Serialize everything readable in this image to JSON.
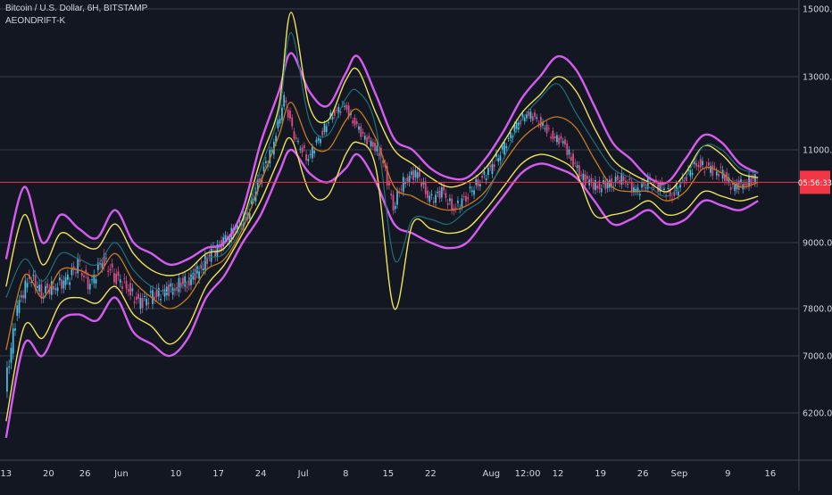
{
  "header": {
    "symbol_title": "Bitcoin / U.S. Dollar, 6H, BITSTAMP",
    "indicator_name": "AEONDRIFT-K"
  },
  "colors": {
    "background": "#131722",
    "grid": "#363a45",
    "text": "#d1d4dc",
    "price_line": "#f23645",
    "magenta_band": "#d65cf0",
    "yellow_band": "#f0e15a",
    "orange_band": "#c77a1e",
    "teal_band": "#1f6f78",
    "candle_up": "#4fc3e8",
    "candle_down": "#e84f8c"
  },
  "chart_data": {
    "type": "line",
    "title": "",
    "xlabel": "",
    "ylabel": "",
    "ylim": [
      5800,
      15000
    ],
    "yticks": [
      15000,
      13000,
      11000,
      9000,
      7000
    ],
    "ytick_labels": [
      "15000.00",
      "13000.00",
      "11000.00",
      "9000.00",
      "7800.00",
      "7000.00",
      "6200.00"
    ],
    "ytick_values": [
      15000,
      13000,
      11000,
      9000,
      7800,
      7000,
      6200
    ],
    "grid": true,
    "current_price": 10300,
    "current_price_label": "05:56:33",
    "xtick_labels": [
      "13",
      "20",
      "26",
      "Jun",
      "10",
      "17",
      "24",
      "Jul",
      "8",
      "15",
      "22",
      "Aug",
      "12:00",
      "12",
      "19",
      "26",
      "Sep",
      "9",
      "16"
    ],
    "xtick_days": [
      0,
      7,
      13,
      19,
      28,
      35,
      42,
      49,
      56,
      63,
      70,
      80,
      86,
      91,
      98,
      105,
      111,
      119,
      126
    ],
    "x_days_range": [
      -1,
      130
    ],
    "series": [
      {
        "key": "magenta_upper",
        "x": [
          0,
          3,
          6,
          9,
          12,
          15,
          18,
          21,
          24,
          27,
          30,
          33,
          36,
          39,
          42,
          45,
          47,
          50,
          53,
          56,
          58,
          61,
          64,
          67,
          70,
          73,
          76,
          79,
          82,
          85,
          88,
          91,
          94,
          97,
          100,
          103,
          106,
          109,
          112,
          115,
          118,
          121,
          124
        ],
        "y": [
          8700,
          10200,
          9000,
          9600,
          9300,
          9100,
          9700,
          9000,
          8800,
          8600,
          8700,
          8900,
          9000,
          9700,
          11200,
          12600,
          13700,
          12600,
          12200,
          13100,
          13600,
          12500,
          11300,
          11000,
          10600,
          10400,
          10400,
          10800,
          11500,
          12400,
          13000,
          13600,
          13200,
          12200,
          11200,
          10800,
          10400,
          10300,
          10800,
          11400,
          11200,
          10700,
          10500
        ]
      },
      {
        "key": "magenta_lower",
        "x": [
          0,
          3,
          6,
          9,
          12,
          15,
          18,
          21,
          24,
          27,
          30,
          33,
          36,
          39,
          42,
          45,
          47,
          50,
          53,
          56,
          58,
          61,
          64,
          67,
          70,
          73,
          76,
          79,
          82,
          85,
          88,
          91,
          94,
          97,
          100,
          103,
          106,
          109,
          112,
          115,
          118,
          121,
          124
        ],
        "y": [
          5900,
          7200,
          7000,
          7600,
          7700,
          7600,
          8000,
          7400,
          7200,
          7000,
          7300,
          8000,
          8400,
          9000,
          9600,
          10500,
          11000,
          10500,
          10300,
          10600,
          10900,
          10300,
          9400,
          9200,
          9000,
          8900,
          9000,
          9500,
          10000,
          10500,
          10700,
          10600,
          10400,
          9900,
          9400,
          9500,
          9700,
          9400,
          9500,
          9900,
          9800,
          9700,
          9900
        ]
      },
      {
        "key": "yellow_upper",
        "x": [
          0,
          3,
          6,
          9,
          12,
          15,
          18,
          21,
          24,
          27,
          30,
          33,
          36,
          39,
          42,
          45,
          47,
          50,
          53,
          56,
          58,
          61,
          64,
          67,
          70,
          73,
          76,
          79,
          82,
          85,
          88,
          91,
          94,
          97,
          100,
          103,
          106,
          109,
          112,
          115,
          118,
          121,
          124
        ],
        "y": [
          8200,
          9600,
          8600,
          9200,
          9000,
          8900,
          9400,
          8800,
          8500,
          8400,
          8500,
          8800,
          8900,
          9500,
          10800,
          12200,
          14900,
          12200,
          11800,
          12900,
          13200,
          12000,
          11000,
          10700,
          10400,
          10200,
          10300,
          10600,
          11200,
          12000,
          12500,
          13000,
          12600,
          11600,
          10800,
          10500,
          10300,
          10100,
          10500,
          11100,
          10900,
          10500,
          10400
        ]
      },
      {
        "key": "yellow_lower",
        "x": [
          0,
          3,
          6,
          9,
          12,
          15,
          18,
          21,
          24,
          27,
          30,
          33,
          36,
          39,
          42,
          45,
          47,
          50,
          53,
          56,
          58,
          61,
          64,
          67,
          70,
          73,
          76,
          79,
          82,
          85,
          88,
          91,
          94,
          97,
          100,
          103,
          106,
          109,
          112,
          115,
          118,
          121,
          124
        ],
        "y": [
          6100,
          7500,
          7300,
          7900,
          8000,
          7900,
          8200,
          7700,
          7500,
          7200,
          7500,
          8200,
          8600,
          9200,
          9900,
          10800,
          11300,
          10100,
          10000,
          10900,
          11200,
          10600,
          7800,
          9400,
          9300,
          9200,
          9300,
          9700,
          10200,
          10700,
          10900,
          10800,
          10500,
          9600,
          9600,
          9700,
          9900,
          9600,
          9700,
          10100,
          10000,
          9900,
          10000
        ]
      },
      {
        "key": "orange_mid",
        "x": [
          0,
          3,
          6,
          9,
          12,
          15,
          18,
          21,
          24,
          27,
          30,
          33,
          36,
          39,
          42,
          45,
          47,
          50,
          53,
          56,
          58,
          61,
          64,
          67,
          70,
          73,
          76,
          79,
          82,
          85,
          88,
          91,
          94,
          97,
          100,
          103,
          106,
          109,
          112,
          115,
          118,
          121,
          124
        ],
        "y": [
          7100,
          8400,
          8000,
          8500,
          8500,
          8400,
          8800,
          8300,
          8000,
          7800,
          8000,
          8500,
          8700,
          9300,
          10300,
          11400,
          12300,
          11200,
          11000,
          11800,
          12100,
          11300,
          10200,
          10000,
          9800,
          9700,
          9800,
          10100,
          10700,
          11300,
          11700,
          11900,
          11600,
          10800,
          10200,
          10100,
          10100,
          9900,
          10100,
          10600,
          10500,
          10200,
          10300
        ]
      },
      {
        "key": "teal_envelope",
        "x": [
          0,
          3,
          6,
          9,
          12,
          15,
          18,
          21,
          24,
          27,
          30,
          33,
          36,
          39,
          42,
          45,
          47,
          50,
          53,
          56,
          58,
          61,
          64,
          67,
          70,
          73,
          76,
          79,
          82,
          85,
          88,
          91,
          94,
          97,
          100,
          103,
          106,
          109,
          112,
          115,
          118,
          121,
          124
        ],
        "y": [
          8000,
          8700,
          8300,
          8800,
          8700,
          8600,
          9000,
          8500,
          8200,
          8100,
          8300,
          8700,
          8800,
          9400,
          10600,
          12000,
          14300,
          11800,
          11400,
          12400,
          12600,
          11600,
          8700,
          9500,
          9500,
          9400,
          9700,
          10000,
          10800,
          11800,
          12400,
          12800,
          12000,
          11200,
          10600,
          10400,
          10200,
          10000,
          10400,
          11100,
          11000,
          10600,
          10500
        ]
      },
      {
        "key": "price",
        "x": [
          0,
          2,
          4,
          6,
          8,
          10,
          12,
          14,
          16,
          18,
          20,
          22,
          24,
          26,
          28,
          30,
          32,
          34,
          36,
          38,
          40,
          42,
          44,
          46,
          48,
          50,
          52,
          54,
          56,
          58,
          60,
          62,
          64,
          66,
          68,
          70,
          72,
          74,
          76,
          78,
          80,
          82,
          84,
          86,
          88,
          90,
          92,
          94,
          96,
          98,
          100,
          102,
          104,
          106,
          108,
          110,
          112,
          114,
          116,
          118,
          120,
          122,
          124
        ],
        "y": [
          6500,
          7800,
          8400,
          8100,
          8200,
          8300,
          8600,
          8200,
          8700,
          8400,
          8200,
          7900,
          8000,
          8100,
          8200,
          8300,
          8500,
          8800,
          9000,
          9300,
          9600,
          10400,
          11000,
          12400,
          11200,
          10800,
          11400,
          12000,
          12200,
          11600,
          11200,
          10900,
          9800,
          10400,
          10500,
          9900,
          10100,
          9700,
          10000,
          10300,
          10600,
          11000,
          11600,
          12000,
          11800,
          11400,
          11200,
          10600,
          10300,
          10200,
          10300,
          10400,
          10100,
          10300,
          10200,
          10000,
          10400,
          10700,
          10600,
          10500,
          10200,
          10300,
          10400
        ]
      }
    ]
  }
}
